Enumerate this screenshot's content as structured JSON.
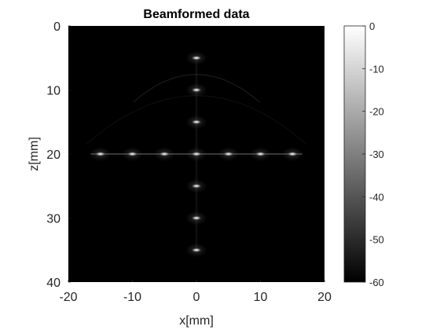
{
  "chart_data": {
    "type": "heatmap",
    "title": "Beamformed data",
    "xlabel": "x[mm]",
    "ylabel": "z[mm]",
    "xlim": [
      -20,
      20
    ],
    "ylim": [
      40,
      0
    ],
    "y_reversed": true,
    "x_ticks": [
      -20,
      -10,
      0,
      10,
      20
    ],
    "y_ticks": [
      0,
      10,
      20,
      30,
      40
    ],
    "colormap": "gray",
    "colorbar": {
      "ticks": [
        0,
        -10,
        -20,
        -30,
        -40,
        -50,
        -60
      ],
      "range": [
        -60,
        0
      ],
      "placement": "right"
    },
    "scatterers": [
      {
        "x": 0,
        "z": 5
      },
      {
        "x": 0,
        "z": 10
      },
      {
        "x": 0,
        "z": 15
      },
      {
        "x": -15,
        "z": 20
      },
      {
        "x": -10,
        "z": 20
      },
      {
        "x": -5,
        "z": 20
      },
      {
        "x": 0,
        "z": 20
      },
      {
        "x": 5,
        "z": 20
      },
      {
        "x": 10,
        "z": 20
      },
      {
        "x": 15,
        "z": 20
      },
      {
        "x": 0,
        "z": 25
      },
      {
        "x": 0,
        "z": 30
      },
      {
        "x": 0,
        "z": 35
      }
    ],
    "colors": {
      "background": "#000000",
      "axis": "#262626",
      "figure": "#ffffff"
    }
  }
}
